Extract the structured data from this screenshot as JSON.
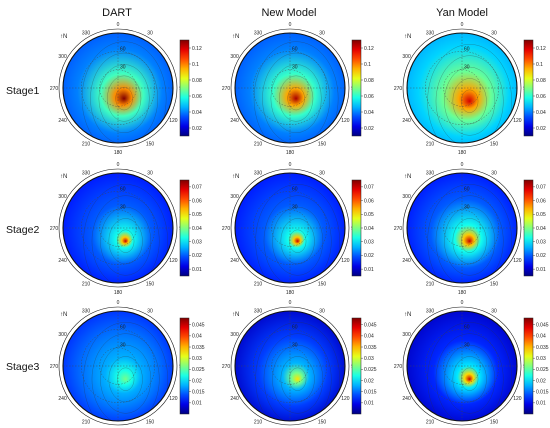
{
  "figure": {
    "columns": [
      "DART",
      "New Model",
      "Yan Model"
    ],
    "rows": [
      "Stage1",
      "Stage2",
      "Stage3"
    ],
    "north_label": "↑N",
    "azimuth_labels": [
      "0",
      "30",
      "90",
      "120",
      "150",
      "180",
      "210",
      "240",
      "270",
      "300",
      "330"
    ],
    "zenith_labels": [
      "30",
      "60"
    ]
  },
  "chart_data": {
    "type": "heatmap",
    "description_free": true,
    "colormap": "jet",
    "stages": [
      {
        "name": "Stage1",
        "colorbar_ticks": [
          "0.12",
          "0.1",
          "0.08",
          "0.06",
          "0.04",
          "0.02"
        ],
        "colorbar_range": [
          0.01,
          0.13
        ],
        "panels": [
          {
            "model": "DART",
            "hotspot_zenith": 20,
            "hotspot_azimuth": 150,
            "max": 0.13,
            "min": 0.04,
            "edge": 0.035,
            "spread": 35
          },
          {
            "model": "New Model",
            "hotspot_zenith": 20,
            "hotspot_azimuth": 150,
            "max": 0.125,
            "min": 0.04,
            "edge": 0.035,
            "spread": 35
          },
          {
            "model": "Yan Model",
            "hotspot_zenith": 25,
            "hotspot_azimuth": 150,
            "max": 0.12,
            "min": 0.05,
            "edge": 0.045,
            "spread": 40
          }
        ]
      },
      {
        "name": "Stage2",
        "colorbar_ticks": [
          "0.07",
          "0.06",
          "0.05",
          "0.04",
          "0.03",
          "0.02",
          "0.01"
        ],
        "colorbar_range": [
          0.005,
          0.075
        ],
        "panels": [
          {
            "model": "DART",
            "hotspot_zenith": 25,
            "hotspot_azimuth": 150,
            "max": 0.07,
            "min": 0.02,
            "edge": 0.015,
            "spread": 14
          },
          {
            "model": "New Model",
            "hotspot_zenith": 25,
            "hotspot_azimuth": 150,
            "max": 0.07,
            "min": 0.02,
            "edge": 0.015,
            "spread": 14
          },
          {
            "model": "Yan Model",
            "hotspot_zenith": 25,
            "hotspot_azimuth": 150,
            "max": 0.07,
            "min": 0.02,
            "edge": 0.015,
            "spread": 22
          }
        ]
      },
      {
        "name": "Stage3",
        "colorbar_ticks": [
          "0.045",
          "0.04",
          "0.035",
          "0.03",
          "0.025",
          "0.02",
          "0.015",
          "0.01"
        ],
        "colorbar_range": [
          0.005,
          0.048
        ],
        "panels": [
          {
            "model": "DART",
            "hotspot_zenith": 25,
            "hotspot_azimuth": 150,
            "max": 0.026,
            "min": 0.015,
            "edge": 0.012,
            "spread": 30
          },
          {
            "model": "New Model",
            "hotspot_zenith": 25,
            "hotspot_azimuth": 150,
            "max": 0.033,
            "min": 0.013,
            "edge": 0.008,
            "spread": 22
          },
          {
            "model": "Yan Model",
            "hotspot_zenith": 25,
            "hotspot_azimuth": 150,
            "max": 0.045,
            "min": 0.012,
            "edge": 0.008,
            "spread": 18
          }
        ]
      }
    ]
  }
}
